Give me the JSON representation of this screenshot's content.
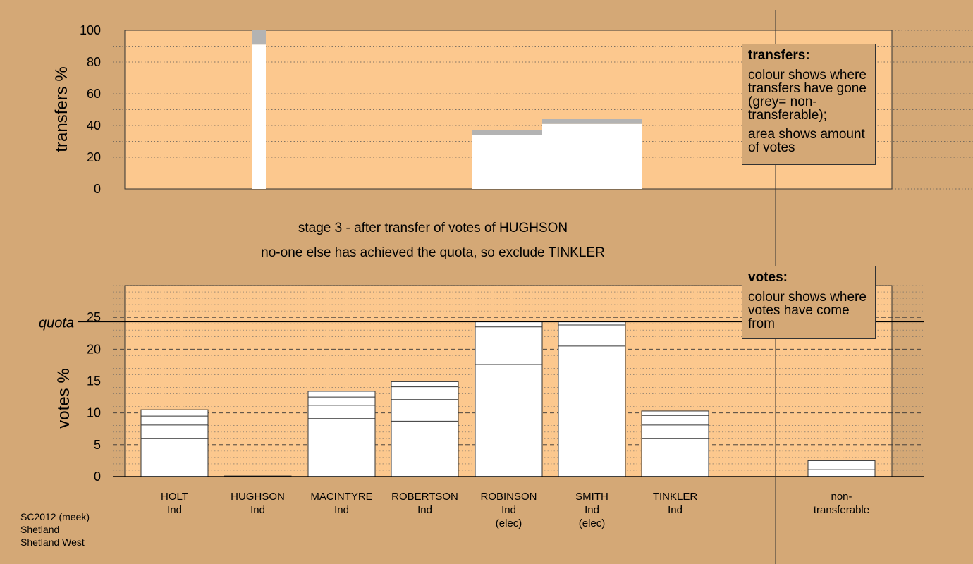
{
  "stage": {
    "line1": "stage 3 - after transfer of votes of HUGHSON",
    "line2": "no-one else has achieved the quota, so exclude TINKLER"
  },
  "legend_transfers": {
    "title": "transfers:",
    "text1": "colour shows where transfers have gone (grey= non-transferable);",
    "text2": "area shows amount of votes"
  },
  "legend_votes": {
    "title": "votes:",
    "text1": "colour shows where votes have come from"
  },
  "footer": {
    "line1": "SC2012 (meek)",
    "line2": "Shetland",
    "line3": "Shetland West"
  },
  "colors": {
    "background": "#d4a876",
    "plot_background": "#fcc88e",
    "bar_fill": "#ffffff",
    "non_transferable": "#b3b3b3"
  },
  "chart_data": [
    {
      "type": "bar",
      "title": "",
      "ylabel": "transfers %",
      "ylim": [
        0,
        100
      ],
      "yticks": [
        0,
        20,
        40,
        60,
        80,
        100
      ],
      "note": "transfer bars: width proportional to votes transferred; white = transferred to candidate, grey = non-transferable",
      "bars": [
        {
          "candidate": "HUGHSON",
          "transferred_pct": 91,
          "non_transferable_pct": 9
        },
        {
          "candidate": "ROBINSON",
          "transferred_pct": 34,
          "non_transferable_pct": 3
        },
        {
          "candidate": "SMITH",
          "transferred_pct": 41,
          "non_transferable_pct": 3
        }
      ]
    },
    {
      "type": "bar",
      "title": "",
      "ylabel": "votes %",
      "ylim": [
        0,
        30
      ],
      "yticks": [
        0,
        5,
        10,
        15,
        20,
        25
      ],
      "quota": 24.3,
      "quota_label": "quota",
      "categories": [
        {
          "name": "HOLT",
          "party": "Ind",
          "status": ""
        },
        {
          "name": "HUGHSON",
          "party": "Ind",
          "status": ""
        },
        {
          "name": "MACINTYRE",
          "party": "Ind",
          "status": ""
        },
        {
          "name": "ROBERTSON",
          "party": "Ind",
          "status": ""
        },
        {
          "name": "ROBINSON",
          "party": "Ind",
          "status": "(elec)"
        },
        {
          "name": "SMITH",
          "party": "Ind",
          "status": "(elec)"
        },
        {
          "name": "TINKLER",
          "party": "Ind",
          "status": ""
        },
        {
          "name": "non-",
          "party": "transferable",
          "status": ""
        }
      ],
      "stacked_boundaries": [
        [
          6.0,
          8.1,
          9.5,
          10.5
        ],
        [
          0.1
        ],
        [
          9.1,
          11.2,
          12.5,
          13.4
        ],
        [
          8.7,
          12.1,
          14.1,
          14.9
        ],
        [
          17.6,
          23.5,
          24.3
        ],
        [
          20.5,
          23.8,
          24.3
        ],
        [
          6.0,
          8.1,
          9.6,
          10.3
        ],
        [
          1.1,
          2.5
        ]
      ]
    }
  ]
}
